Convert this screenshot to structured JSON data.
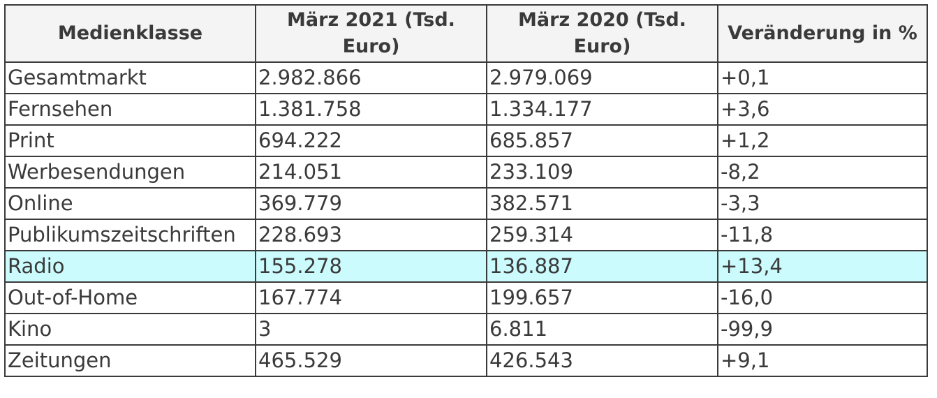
{
  "table": {
    "headers": [
      "Medienklasse",
      "März 2021 (Tsd. Euro)",
      "März 2020 (Tsd. Euro)",
      "Veränderung in %"
    ],
    "highlight_color": "#ccfbfd",
    "rows": [
      {
        "medienklasse": "Gesamtmarkt",
        "maerz_2021": "2.982.866",
        "maerz_2020": "2.979.069",
        "veraenderung": "+0,1"
      },
      {
        "medienklasse": "Fernsehen",
        "maerz_2021": "1.381.758",
        "maerz_2020": "1.334.177",
        "veraenderung": "+3,6"
      },
      {
        "medienklasse": "Print",
        "maerz_2021": "694.222",
        "maerz_2020": "685.857",
        "veraenderung": "+1,2"
      },
      {
        "medienklasse": "Werbesendungen",
        "maerz_2021": "214.051",
        "maerz_2020": "233.109",
        "veraenderung": "-8,2"
      },
      {
        "medienklasse": "Online",
        "maerz_2021": "369.779",
        "maerz_2020": "382.571",
        "veraenderung": "-3,3"
      },
      {
        "medienklasse": "Publikumszeitschriften",
        "maerz_2021": "228.693",
        "maerz_2020": "259.314",
        "veraenderung": "-11,8"
      },
      {
        "medienklasse": "Radio",
        "maerz_2021": "155.278",
        "maerz_2020": "136.887",
        "veraenderung": "+13,4",
        "highlighted": true
      },
      {
        "medienklasse": "Out-of-Home",
        "maerz_2021": "167.774",
        "maerz_2020": "199.657",
        "veraenderung": "-16,0"
      },
      {
        "medienklasse": "Kino",
        "maerz_2021": "3",
        "maerz_2020": "6.811",
        "veraenderung": "-99,9"
      },
      {
        "medienklasse": "Zeitungen",
        "maerz_2021": "465.529",
        "maerz_2020": "426.543",
        "veraenderung": "+9,1"
      }
    ]
  }
}
